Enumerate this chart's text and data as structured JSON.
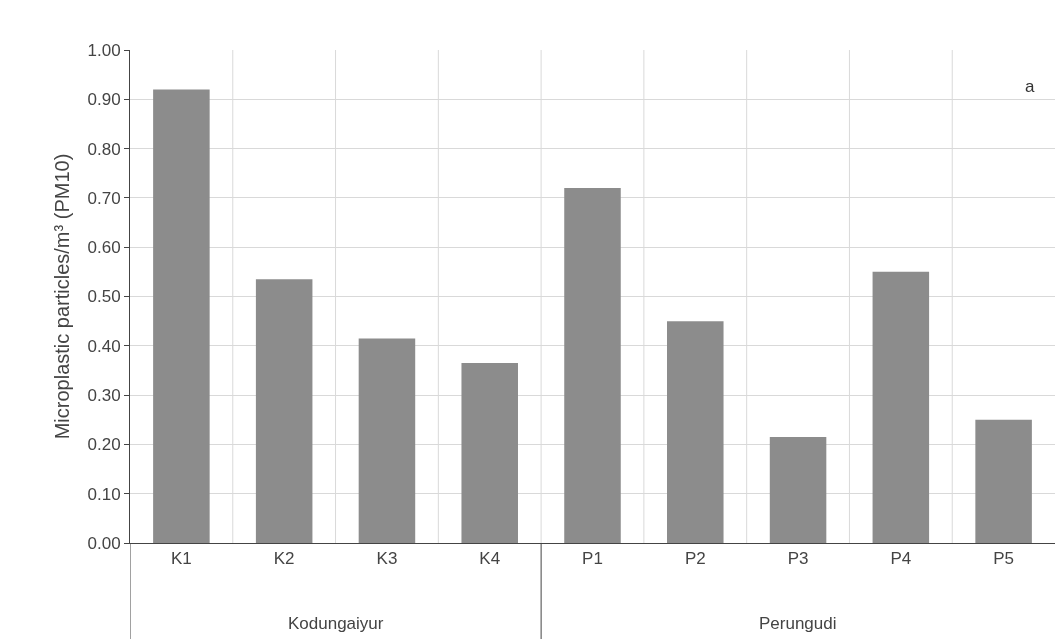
{
  "chart_data": {
    "type": "bar",
    "ylabel": "Microplastic particles/m³ (PM10)",
    "categories": [
      "K1",
      "K2",
      "K3",
      "K4",
      "P1",
      "P2",
      "P3",
      "P4",
      "P5"
    ],
    "values": [
      0.92,
      0.535,
      0.415,
      0.365,
      0.72,
      0.45,
      0.215,
      0.55,
      0.25
    ],
    "color": "#8c8c8c",
    "ylim": [
      0,
      1
    ],
    "yticks": [
      {
        "value": 0,
        "label": "0.00"
      },
      {
        "value": 0.1,
        "label": "0.10"
      },
      {
        "value": 0.2,
        "label": "0.20"
      },
      {
        "value": 0.3,
        "label": "0.30"
      },
      {
        "value": 0.4,
        "label": "0.40"
      },
      {
        "value": 0.5,
        "label": "0.50"
      },
      {
        "value": 0.6,
        "label": "0.60"
      },
      {
        "value": 0.7,
        "label": "0.70"
      },
      {
        "value": 0.8,
        "label": "0.80"
      },
      {
        "value": 0.9,
        "label": "0.90"
      },
      {
        "value": 1,
        "label": "1.00"
      }
    ],
    "grid": true,
    "annotations": [
      "a",
      "Kodungaiyur",
      "Perungudi"
    ]
  }
}
